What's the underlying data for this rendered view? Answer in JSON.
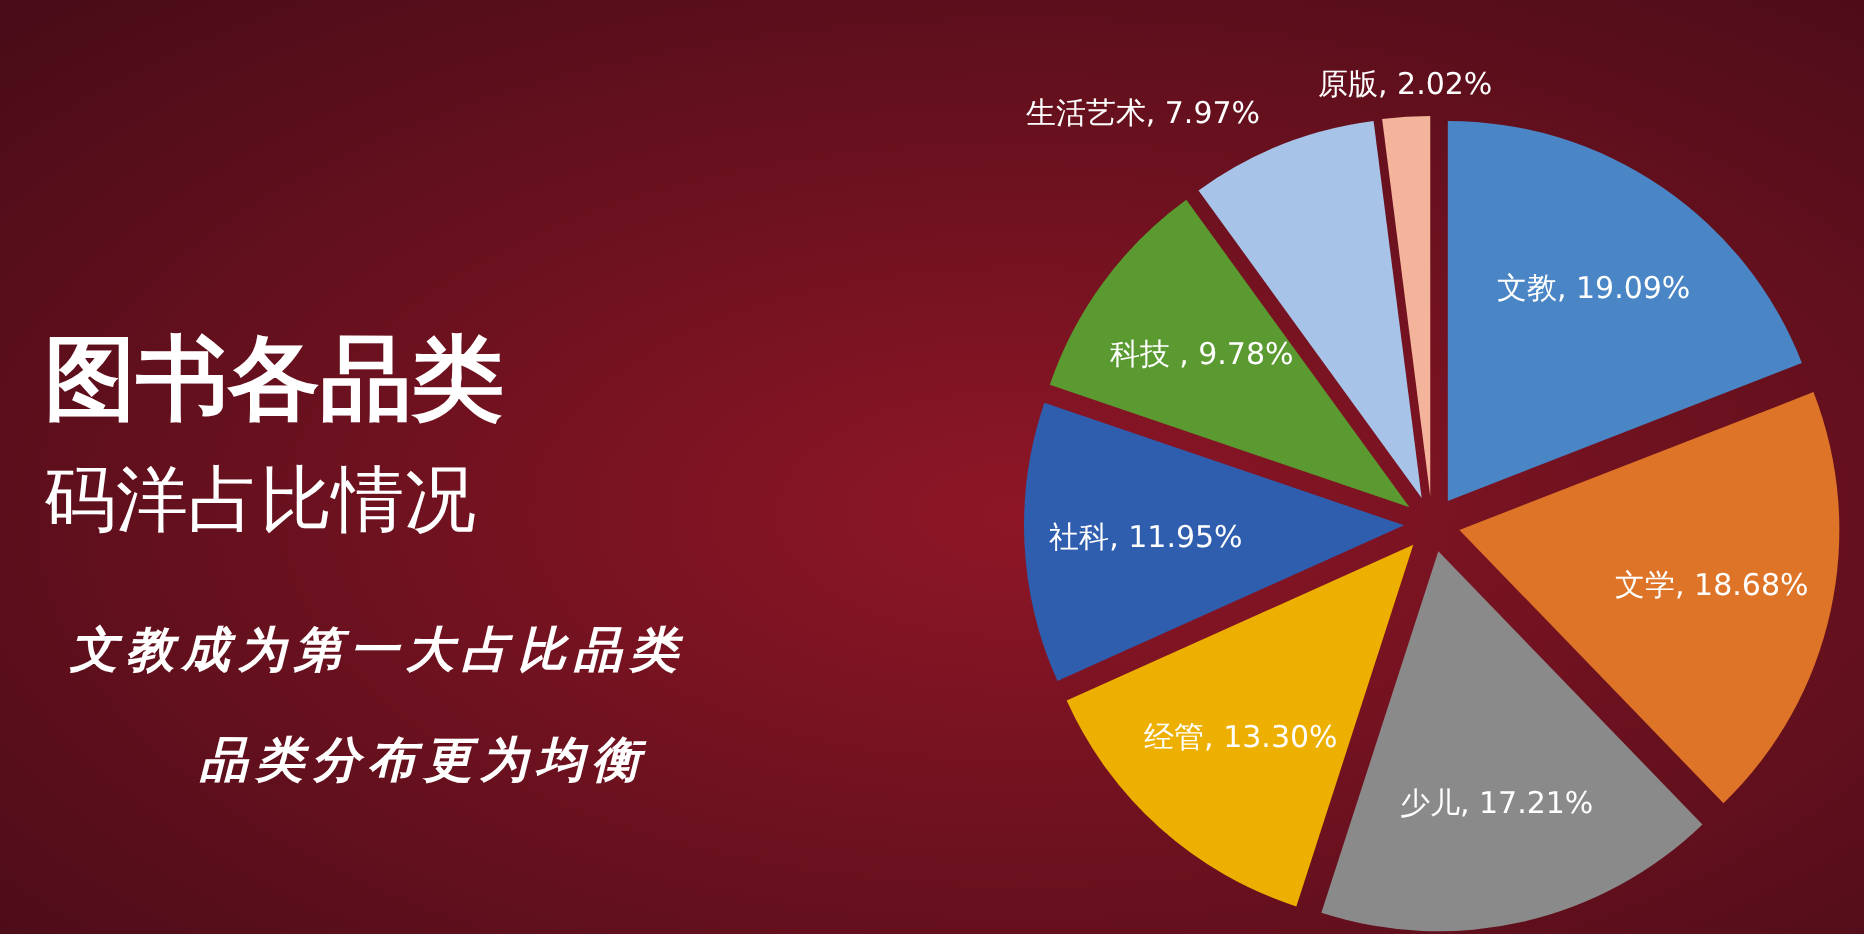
{
  "chart_data": {
    "type": "pie",
    "title": "图书各品类",
    "subtitle": "码洋占比情况",
    "categories": [
      "文教",
      "文学",
      "少儿",
      "经管",
      "社科",
      "科技",
      "生活艺术",
      "原版"
    ],
    "values": [
      19.09,
      18.68,
      17.21,
      13.3,
      11.95,
      9.78,
      7.97,
      2.02
    ],
    "value_labels": [
      ", 19.09%",
      ", 18.68%",
      ", 17.21%",
      ", 13.30%",
      ", 11.95%",
      " , 9.78%",
      ", 7.97%",
      ", 2.02%"
    ],
    "colors": [
      "#4a86c5",
      "#de7428",
      "#8a8a8a",
      "#eeb000",
      "#2f5eae",
      "#5a9a30",
      "#a7c4e8",
      "#f4b49c"
    ],
    "annotations": [
      "文教成为第一大占比品类",
      "品类分布更为均衡"
    ]
  }
}
